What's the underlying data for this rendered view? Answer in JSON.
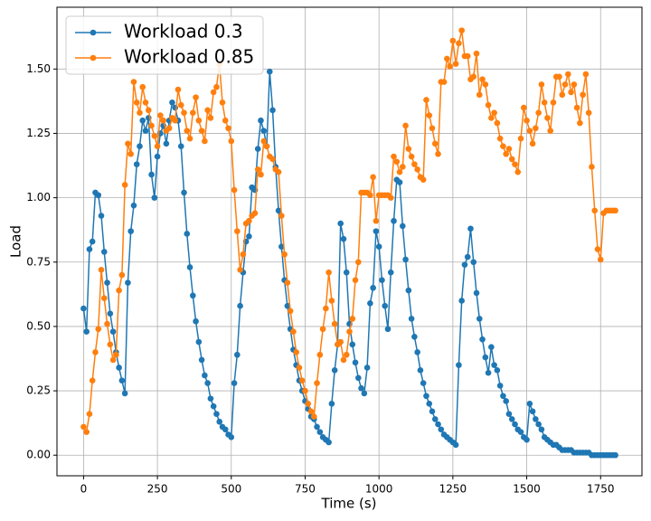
{
  "chart_data": {
    "type": "line",
    "x_label": "Time (s)",
    "y_label": "Load",
    "x": [
      0,
      10,
      20,
      30,
      40,
      50,
      60,
      70,
      80,
      90,
      100,
      110,
      120,
      130,
      140,
      150,
      160,
      170,
      180,
      190,
      200,
      210,
      220,
      230,
      240,
      250,
      260,
      270,
      280,
      290,
      300,
      310,
      320,
      330,
      340,
      350,
      360,
      370,
      380,
      390,
      400,
      410,
      420,
      430,
      440,
      450,
      460,
      470,
      480,
      490,
      500,
      510,
      520,
      530,
      540,
      550,
      560,
      570,
      580,
      590,
      600,
      610,
      620,
      630,
      640,
      650,
      660,
      670,
      680,
      690,
      700,
      710,
      720,
      730,
      740,
      750,
      760,
      770,
      780,
      790,
      800,
      810,
      820,
      830,
      840,
      850,
      860,
      870,
      880,
      890,
      900,
      910,
      920,
      930,
      940,
      950,
      960,
      970,
      980,
      990,
      1000,
      1010,
      1020,
      1030,
      1040,
      1050,
      1060,
      1070,
      1080,
      1090,
      1100,
      1110,
      1120,
      1130,
      1140,
      1150,
      1160,
      1170,
      1180,
      1190,
      1200,
      1210,
      1220,
      1230,
      1240,
      1250,
      1260,
      1270,
      1280,
      1290,
      1300,
      1310,
      1320,
      1330,
      1340,
      1350,
      1360,
      1370,
      1380,
      1390,
      1400,
      1410,
      1420,
      1430,
      1440,
      1450,
      1460,
      1470,
      1480,
      1490,
      1500,
      1510,
      1520,
      1530,
      1540,
      1550,
      1560,
      1570,
      1580,
      1590,
      1600,
      1610,
      1620,
      1630,
      1640,
      1650,
      1660,
      1670,
      1680,
      1690,
      1700,
      1710,
      1720,
      1730,
      1740,
      1750,
      1760,
      1770,
      1780,
      1790,
      1800
    ],
    "series": [
      {
        "name": "Workload 0.3",
        "color": "#1f77b4",
        "values": [
          0.57,
          0.48,
          0.8,
          0.83,
          1.02,
          1.01,
          0.93,
          0.79,
          0.67,
          0.55,
          0.48,
          0.4,
          0.34,
          0.29,
          0.24,
          0.67,
          0.87,
          0.97,
          1.13,
          1.2,
          1.3,
          1.26,
          1.31,
          1.09,
          1.0,
          1.16,
          1.25,
          1.28,
          1.21,
          1.3,
          1.37,
          1.35,
          1.3,
          1.2,
          1.02,
          0.86,
          0.73,
          0.62,
          0.52,
          0.44,
          0.37,
          0.31,
          0.28,
          0.22,
          0.19,
          0.16,
          0.13,
          0.11,
          0.1,
          0.08,
          0.07,
          0.28,
          0.39,
          0.58,
          0.71,
          0.83,
          0.85,
          1.04,
          1.03,
          1.19,
          1.3,
          1.26,
          1.2,
          1.49,
          1.34,
          1.12,
          0.95,
          0.81,
          0.68,
          0.58,
          0.49,
          0.41,
          0.35,
          0.29,
          0.25,
          0.21,
          0.18,
          0.15,
          0.14,
          0.11,
          0.09,
          0.07,
          0.06,
          0.05,
          0.2,
          0.33,
          0.43,
          0.9,
          0.84,
          0.71,
          0.51,
          0.43,
          0.36,
          0.3,
          0.26,
          0.24,
          0.34,
          0.59,
          0.65,
          0.87,
          0.81,
          0.68,
          0.58,
          0.49,
          0.71,
          0.91,
          1.07,
          1.06,
          0.89,
          0.76,
          0.64,
          0.53,
          0.46,
          0.4,
          0.33,
          0.28,
          0.23,
          0.2,
          0.17,
          0.14,
          0.12,
          0.1,
          0.08,
          0.07,
          0.06,
          0.05,
          0.04,
          0.35,
          0.6,
          0.74,
          0.77,
          0.88,
          0.75,
          0.63,
          0.53,
          0.45,
          0.38,
          0.32,
          0.42,
          0.35,
          0.33,
          0.27,
          0.23,
          0.21,
          0.16,
          0.14,
          0.12,
          0.1,
          0.09,
          0.07,
          0.06,
          0.2,
          0.17,
          0.14,
          0.12,
          0.1,
          0.07,
          0.06,
          0.05,
          0.04,
          0.04,
          0.03,
          0.02,
          0.02,
          0.02,
          0.02,
          0.01,
          0.01,
          0.01,
          0.01,
          0.01,
          0.01,
          0,
          0,
          0,
          0,
          0,
          0,
          0,
          0,
          0
        ]
      },
      {
        "name": "Workload 0.85",
        "color": "#ff7f0e",
        "values": [
          0.11,
          0.09,
          0.16,
          0.29,
          0.4,
          0.49,
          0.72,
          0.61,
          0.51,
          0.43,
          0.37,
          0.39,
          0.64,
          0.7,
          1.05,
          1.21,
          1.17,
          1.45,
          1.37,
          1.33,
          1.43,
          1.37,
          1.34,
          1.28,
          1.24,
          1.2,
          1.32,
          1.3,
          1.26,
          1.27,
          1.31,
          1.3,
          1.42,
          1.36,
          1.33,
          1.26,
          1.23,
          1.33,
          1.39,
          1.3,
          1.26,
          1.22,
          1.34,
          1.31,
          1.41,
          1.43,
          1.52,
          1.37,
          1.3,
          1.27,
          1.22,
          1.03,
          0.87,
          0.72,
          0.78,
          0.9,
          0.91,
          0.93,
          0.94,
          1.11,
          1.09,
          1.22,
          1.2,
          1.16,
          1.15,
          1.11,
          1.1,
          0.93,
          0.78,
          0.67,
          0.56,
          0.48,
          0.4,
          0.34,
          0.29,
          0.25,
          0.2,
          0.17,
          0.15,
          0.28,
          0.39,
          0.49,
          0.57,
          0.71,
          0.6,
          0.51,
          0.43,
          0.44,
          0.37,
          0.39,
          0.48,
          0.53,
          0.68,
          0.75,
          1.02,
          1.02,
          1.02,
          1.01,
          1.08,
          0.91,
          1.01,
          1.01,
          1.01,
          1.01,
          1.0,
          1.16,
          1.14,
          1.1,
          1.12,
          1.28,
          1.19,
          1.16,
          1.13,
          1.11,
          1.08,
          1.07,
          1.38,
          1.32,
          1.27,
          1.21,
          1.17,
          1.45,
          1.45,
          1.54,
          1.51,
          1.61,
          1.52,
          1.6,
          1.65,
          1.55,
          1.55,
          1.46,
          1.47,
          1.56,
          1.4,
          1.46,
          1.44,
          1.36,
          1.31,
          1.33,
          1.29,
          1.23,
          1.2,
          1.17,
          1.19,
          1.15,
          1.13,
          1.1,
          1.23,
          1.35,
          1.3,
          1.26,
          1.21,
          1.27,
          1.33,
          1.44,
          1.37,
          1.31,
          1.26,
          1.37,
          1.47,
          1.47,
          1.4,
          1.44,
          1.48,
          1.41,
          1.44,
          1.35,
          1.29,
          1.4,
          1.48,
          1.33,
          1.12,
          0.95,
          0.8,
          0.76,
          0.94,
          0.95,
          0.95,
          0.95,
          0.95
        ]
      }
    ],
    "xlim": [
      -90,
      1890
    ],
    "xticks": [
      0,
      250,
      500,
      750,
      1000,
      1250,
      1500,
      1750
    ],
    "ylim": [
      -0.08,
      1.74
    ],
    "yticks": [
      {
        "value": 0,
        "label": "0.00"
      },
      {
        "value": 0.25,
        "label": "0.25"
      },
      {
        "value": 0.5,
        "label": "0.50"
      },
      {
        "value": 0.75,
        "label": "0.75"
      },
      {
        "value": 1,
        "label": "1.00"
      },
      {
        "value": 1.25,
        "label": "1.25"
      },
      {
        "value": 1.5,
        "label": "1.50"
      }
    ],
    "grid": true,
    "legend": "upper left"
  }
}
